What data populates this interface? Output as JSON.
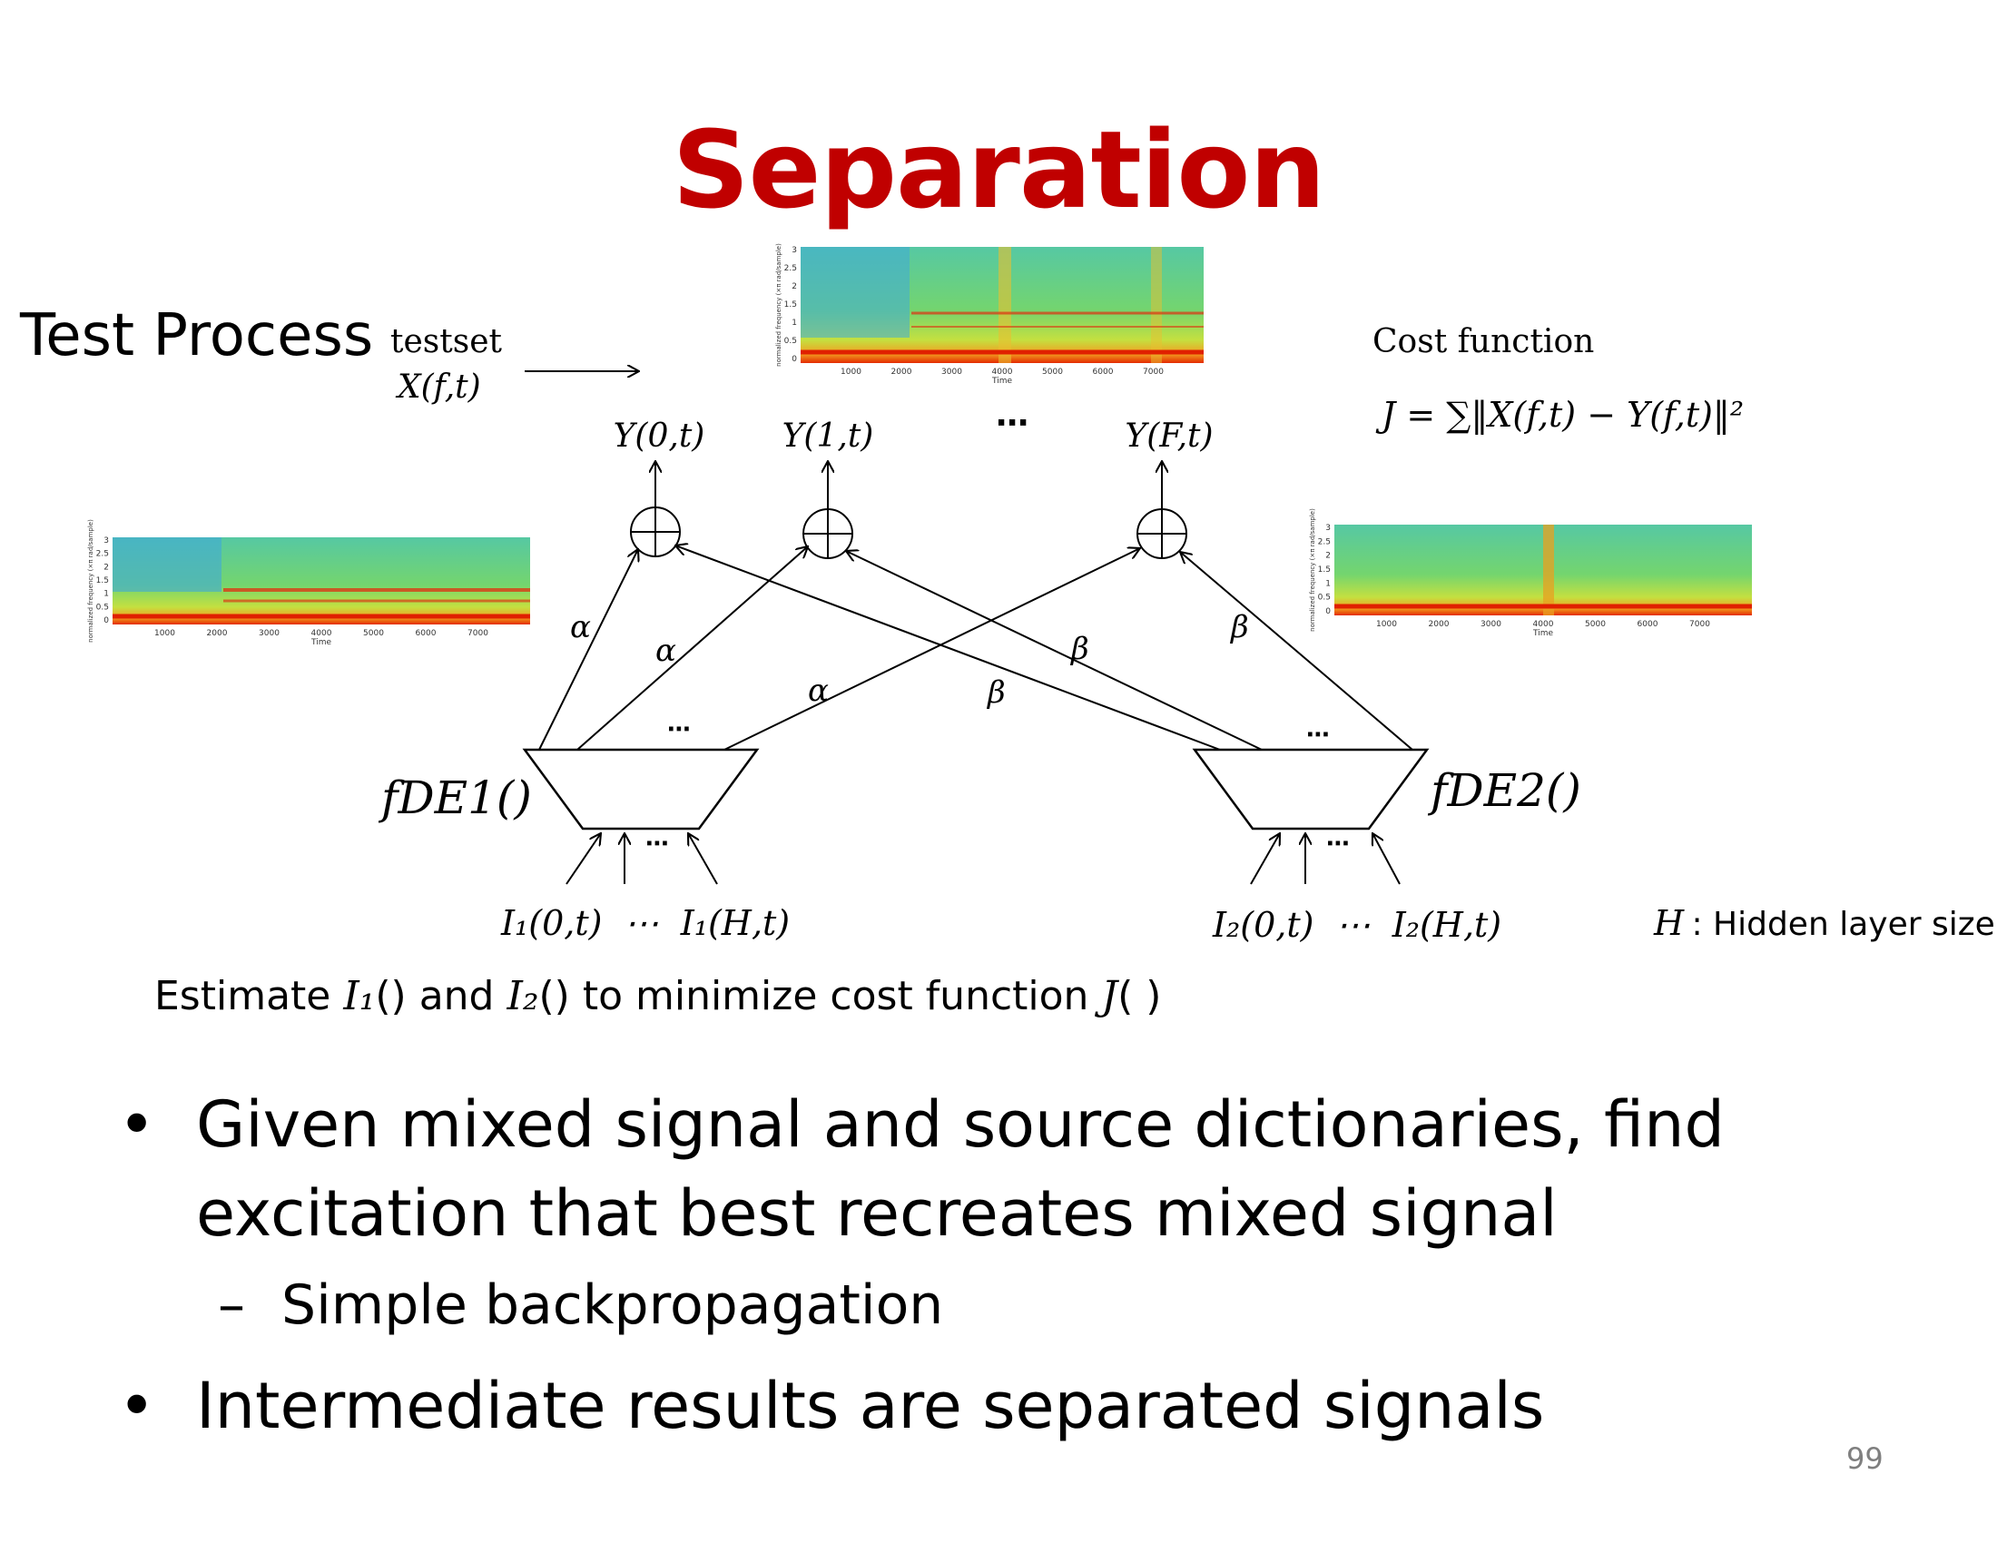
{
  "slide": {
    "title": "Separation",
    "page_number": "99"
  },
  "diagram": {
    "section_label": "Test Process",
    "testset_label": "testset",
    "testset_input": "X(f,t)",
    "cost_function_label": "Cost function",
    "cost_function_formula": "J = ∑‖X(f,t) − Y(f,t)‖²",
    "outputs": [
      "Y(0,t)",
      "Y(1,t)",
      "Y(F,t)"
    ],
    "outputs_ellipsis": "⋯",
    "weight_alpha": "α",
    "weight_beta": "β",
    "decoder1_label": "fDE1()",
    "decoder2_label": "fDE2()",
    "ellipsis": "⋯",
    "decoder1_inputs": "I₁(0,t)  ⋯  I₁(H,t)",
    "decoder2_inputs": "I₂(0,t)  ⋯  I₂(H,t)",
    "hidden_note_symbol": "H",
    "hidden_note_text": " : Hidden layer size",
    "spectrogram_x_ticks": [
      "1000",
      "2000",
      "3000",
      "4000",
      "5000",
      "6000",
      "7000"
    ],
    "spectrogram_y_ticks": [
      "3",
      "2.5",
      "2",
      "1.5",
      "1",
      "0.5",
      "0"
    ],
    "spectrogram_x_label": "Time",
    "spectrogram_y_label": "normalized frequency (×π rad/sample)"
  },
  "estimate_line": {
    "prefix": "Estimate ",
    "i1": "I₁",
    "mid": "() and ",
    "i2": "I₂",
    "suffix_a": "() to minimize cost function ",
    "j": "J",
    "suffix_b": "( )"
  },
  "bullets": [
    {
      "text": "Given mixed signal and source dictionaries, find excitation that best recreates mixed signal",
      "sub": [
        "Simple backpropagation"
      ]
    },
    {
      "text": "Intermediate results are separated signals",
      "sub": []
    }
  ],
  "colors": {
    "title": "#c00000",
    "page_number": "#7f7f7f",
    "spectrogram_bg": "#5ccf8e",
    "spectrogram_low_band": "#ff3a00"
  }
}
